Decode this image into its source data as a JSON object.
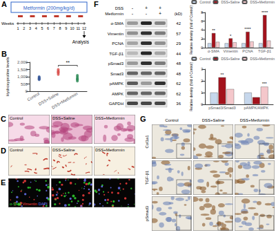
{
  "chart_data": [
    {
      "type": "scatter",
      "ylabel": "Hydroxyproline levels",
      "categories": [
        "Control",
        "DSS+Saline",
        "DSS+Metformin"
      ],
      "values": [
        [
          800,
          850,
          900,
          950,
          1000,
          880
        ],
        [
          1150,
          1250,
          1300,
          1400,
          1500,
          1350
        ],
        [
          700,
          800,
          900,
          1000,
          1100,
          850
        ]
      ],
      "colors": [
        "#3a5a9a",
        "#d9534f",
        "#2e8b57"
      ],
      "ylim": [
        0,
        2000
      ],
      "yticks": [
        0,
        500,
        1000,
        1500,
        2000
      ],
      "grid": false,
      "annotations": [
        {
          "text": "**",
          "between": [
            "DSS+Saline",
            "DSS+Metformin"
          ]
        }
      ]
    },
    {
      "type": "bar",
      "ylabel": "Relative density (fold of Control)",
      "categories": [
        "α-SMA",
        "Vimentin",
        "PCNA",
        "TGF-β1"
      ],
      "series": [
        {
          "name": "Control",
          "color": "#c6d7ec",
          "values": [
            1,
            1,
            1,
            1
          ]
        },
        {
          "name": "DSS+Saline",
          "color": "#a3121c",
          "values": [
            3.3,
            2.1,
            3.6,
            7.4
          ]
        },
        {
          "name": "DSS+Metformin",
          "color": "#f4c7cb",
          "values": [
            1.3,
            1.2,
            1.4,
            1.6
          ]
        }
      ],
      "ylim": [
        0,
        8
      ],
      "yticks": [
        0,
        2,
        4,
        6,
        8
      ],
      "grid": false,
      "legend": "upper right",
      "annotations": [
        {
          "text": "**",
          "category": "α-SMA",
          "series": "DSS+Saline"
        },
        {
          "text": "*",
          "category": "Vimentin",
          "series": "DSS+Saline"
        },
        {
          "text": "****",
          "category": "PCNA",
          "series": "DSS+Saline"
        },
        {
          "text": "****",
          "category": "TGF-β1",
          "series": "DSS+Saline"
        }
      ]
    },
    {
      "type": "bar",
      "ylabel": "Relative density (fold of Control)",
      "categories": [
        "pSmad3/Smad3",
        "pAMPK/AMPK"
      ],
      "series": [
        {
          "name": "Control",
          "color": "#c6d7ec",
          "values": [
            1,
            1
          ]
        },
        {
          "name": "DSS+Saline",
          "color": "#a3121c",
          "values": [
            2.3,
            0.6
          ]
        },
        {
          "name": "DSS+Metformin",
          "color": "#f4c7cb",
          "values": [
            1.3,
            1.5
          ]
        }
      ],
      "ylim": [
        0,
        3
      ],
      "yticks": [
        0,
        1,
        2,
        3
      ],
      "grid": false,
      "legend": "upper right",
      "annotations": [
        {
          "text": "**",
          "category": "pSmad3/Smad3",
          "series": "DSS+Saline"
        },
        {
          "text": "***",
          "category": "pAMPK/AMPK",
          "series": "DSS+Metformin"
        }
      ]
    }
  ],
  "panels": {
    "A": {
      "letter": "A",
      "treatment": "Metformin (200mg/kg/d)",
      "axis_title": "Weeks",
      "weeks": [
        1,
        2,
        3,
        4,
        5,
        6,
        7,
        8,
        9,
        10,
        11,
        12
      ],
      "endpoint": "Analysis"
    },
    "B": {
      "letter": "B"
    },
    "C": {
      "letter": "C",
      "columns": [
        "Control",
        "DSS+Saline",
        "DSS+Metformin"
      ]
    },
    "D": {
      "letter": "D",
      "columns": [
        "Control",
        "DSS+Saline",
        "DSS+Metformin"
      ]
    },
    "E": {
      "letter": "E",
      "stains": [
        {
          "text": "α-SMA",
          "color": "#33dd33"
        },
        {
          "text": "Vimentin",
          "color": "#ff4040"
        },
        {
          "text": "DAPI",
          "color": "#6f7bff"
        }
      ]
    },
    "F": {
      "letter": "F",
      "unit": "(kD)",
      "conditions": [
        {
          "name": "DSS",
          "signs": [
            "-",
            "+",
            "+"
          ]
        },
        {
          "name": "Metformin",
          "signs": [
            "-",
            "-",
            "+"
          ]
        }
      ],
      "blots": [
        {
          "protein": "α-SMA",
          "kd": 42
        },
        {
          "protein": "Vimentin",
          "kd": 57
        },
        {
          "protein": "PCNA",
          "kd": 29
        },
        {
          "protein": "TGF-β1",
          "kd": 44
        },
        {
          "protein": "pSmad3",
          "kd": 48
        },
        {
          "protein": "Smad3",
          "kd": 48
        },
        {
          "protein": "pAMPK",
          "kd": 62
        },
        {
          "protein": "AMPK",
          "kd": 62
        },
        {
          "protein": "GAPDH",
          "kd": 36
        }
      ]
    },
    "G": {
      "letter": "G",
      "columns": [
        "Control",
        "DSS+Saline",
        "DSS+Metformin"
      ],
      "rows": [
        "Col1a1",
        "TGF-β1",
        "pSmad3"
      ]
    }
  }
}
